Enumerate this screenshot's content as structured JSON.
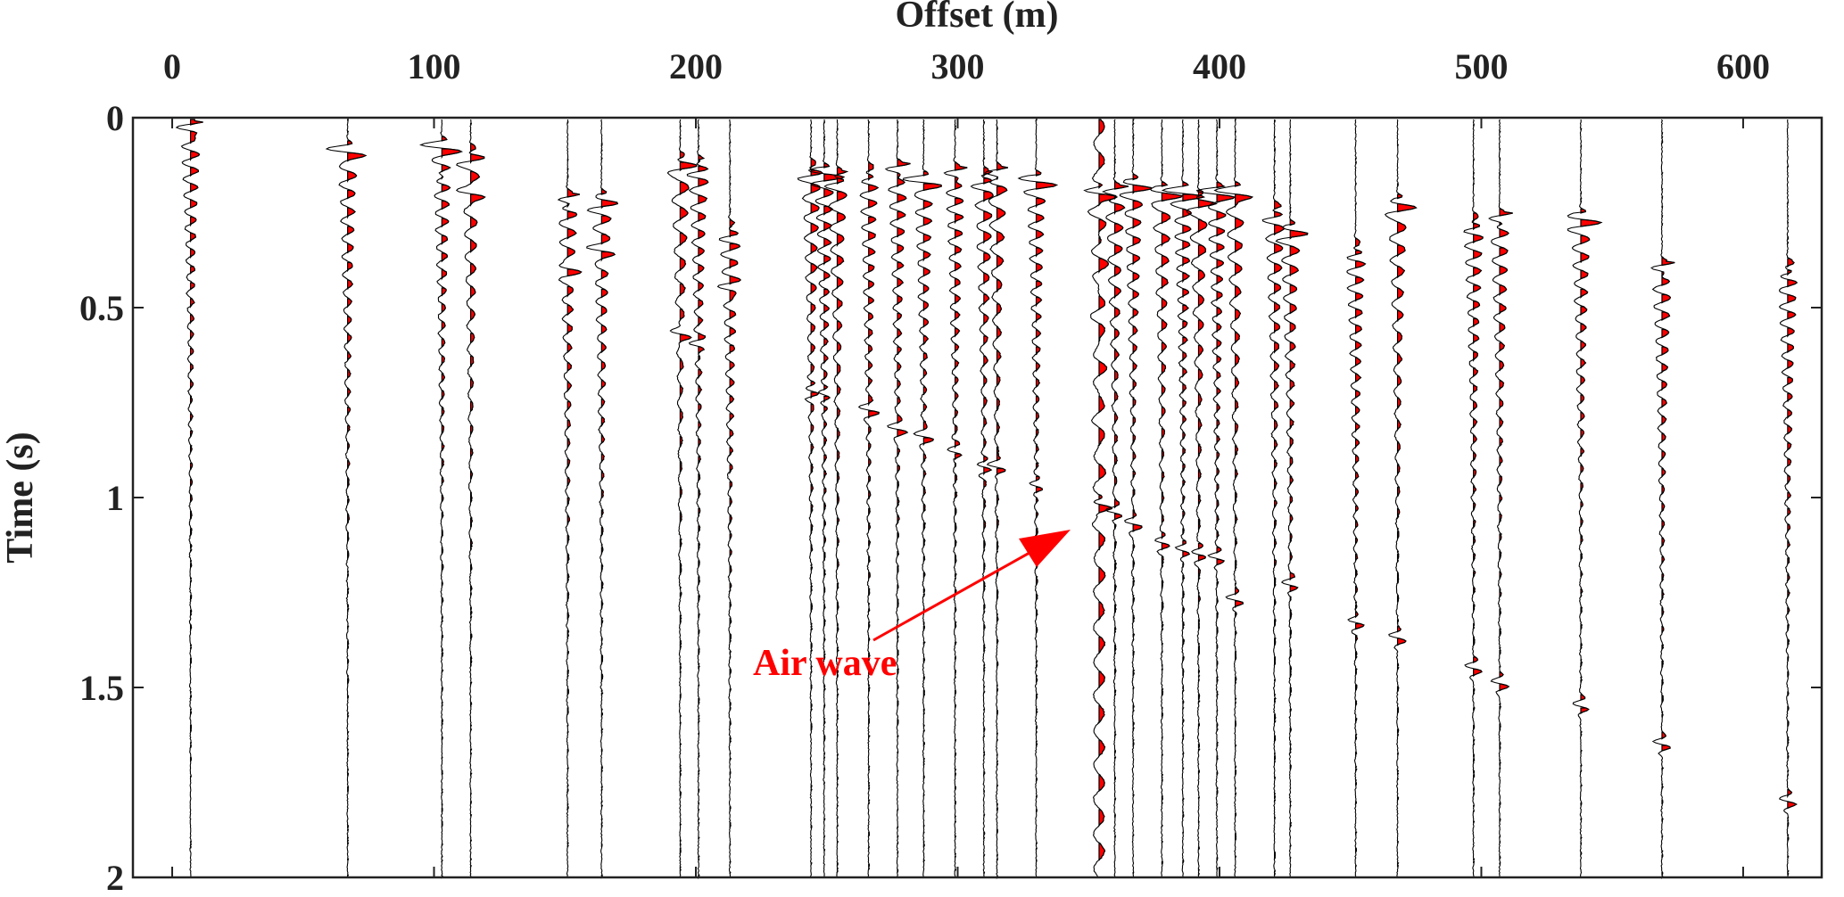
{
  "chart_data": {
    "type": "seismic-wiggle",
    "xlabel": "Offset (m)",
    "ylabel": "Time (s)",
    "xlim": [
      -15,
      630
    ],
    "ylim": [
      0,
      2
    ],
    "y_reversed": true,
    "x_axis_position": "top",
    "xticks": [
      "0",
      "100",
      "200",
      "300",
      "400",
      "500",
      "600"
    ],
    "xtick_values": [
      0,
      100,
      200,
      300,
      400,
      500,
      600
    ],
    "yticks": [
      "0",
      "0.5",
      "1",
      "1.5",
      "2"
    ],
    "ytick_values": [
      0,
      0.5,
      1,
      1.5,
      2
    ],
    "positive_fill_color": "#ff0000",
    "trace_color": "#000000",
    "traces": [
      {
        "offset": 7,
        "events": [
          0.03
        ]
      },
      {
        "offset": 67,
        "events": [
          0.09
        ]
      },
      {
        "offset": 103,
        "events": [
          0.08,
          0.15
        ]
      },
      {
        "offset": 114,
        "events": [
          0.1,
          0.2
        ]
      },
      {
        "offset": 151,
        "events": [
          0.22,
          0.4
        ]
      },
      {
        "offset": 164,
        "events": [
          0.22,
          0.35
        ]
      },
      {
        "offset": 194,
        "events": [
          0.12,
          0.57
        ]
      },
      {
        "offset": 201,
        "events": [
          0.13,
          0.6
        ]
      },
      {
        "offset": 213,
        "events": [
          0.3,
          0.45
        ]
      },
      {
        "offset": 244,
        "events": [
          0.14,
          0.72
        ]
      },
      {
        "offset": 249,
        "events": [
          0.15,
          0.73
        ]
      },
      {
        "offset": 254,
        "events": [
          0.16
        ]
      },
      {
        "offset": 266,
        "events": [
          0.15,
          0.77
        ]
      },
      {
        "offset": 277,
        "events": [
          0.14,
          0.82
        ]
      },
      {
        "offset": 287,
        "events": [
          0.17,
          0.84
        ]
      },
      {
        "offset": 299,
        "events": [
          0.15,
          0.88
        ]
      },
      {
        "offset": 310,
        "events": [
          0.16,
          0.92
        ]
      },
      {
        "offset": 315,
        "events": [
          0.15,
          0.92
        ]
      },
      {
        "offset": 330,
        "events": [
          0.17,
          0.97
        ]
      },
      {
        "offset": 354,
        "events": [
          0.2,
          1.02
        ],
        "airwave": true
      },
      {
        "offset": 360,
        "events": [
          0.2,
          1.04
        ]
      },
      {
        "offset": 367,
        "events": [
          0.18,
          1.07
        ]
      },
      {
        "offset": 378,
        "events": [
          0.2,
          1.12
        ]
      },
      {
        "offset": 386,
        "events": [
          0.2,
          1.14
        ]
      },
      {
        "offset": 392,
        "events": [
          0.22,
          1.15
        ]
      },
      {
        "offset": 399,
        "events": [
          0.2,
          1.16
        ]
      },
      {
        "offset": 406,
        "events": [
          0.2,
          1.27
        ]
      },
      {
        "offset": 421,
        "events": [
          0.25
        ]
      },
      {
        "offset": 427,
        "events": [
          0.3,
          1.23
        ]
      },
      {
        "offset": 452,
        "events": [
          0.35,
          1.33
        ]
      },
      {
        "offset": 468,
        "events": [
          0.23,
          1.37
        ]
      },
      {
        "offset": 497,
        "events": [
          0.28,
          1.45
        ]
      },
      {
        "offset": 507,
        "events": [
          0.27,
          1.49
        ]
      },
      {
        "offset": 538,
        "events": [
          0.27,
          1.55
        ]
      },
      {
        "offset": 569,
        "events": [
          0.4,
          1.65
        ]
      },
      {
        "offset": 617,
        "events": [
          0.4,
          1.8
        ]
      }
    ],
    "annotations": [
      {
        "text": "Air wave",
        "color": "#ff0000",
        "arrow_to": [
          350,
          1.05
        ]
      }
    ]
  }
}
